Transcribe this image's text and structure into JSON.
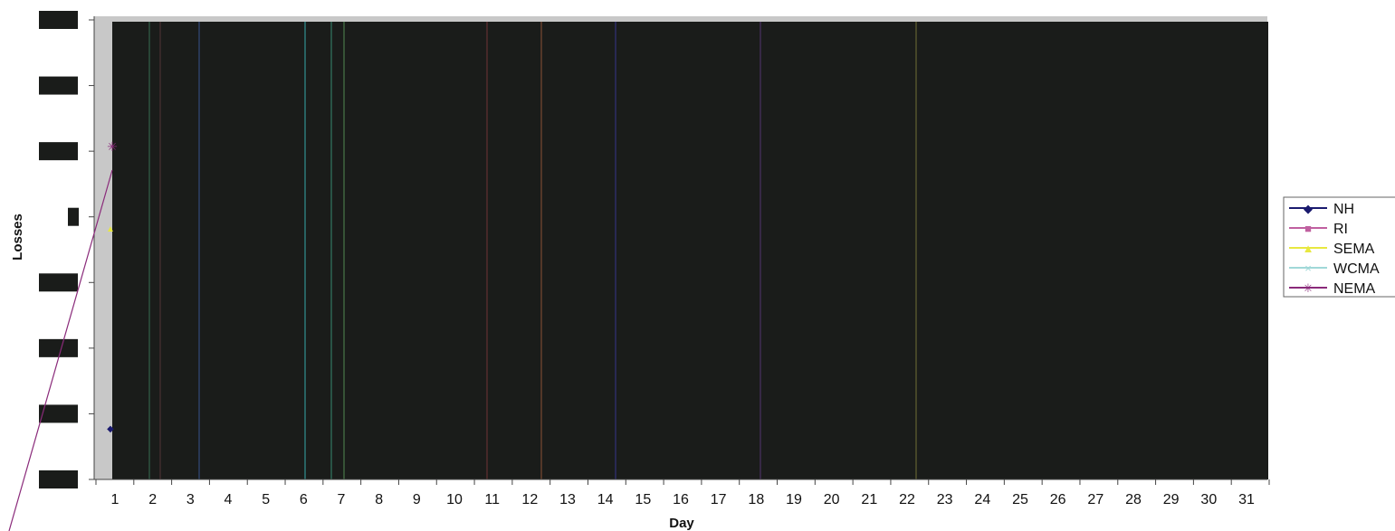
{
  "chart_data": {
    "type": "line",
    "xlabel": "Day",
    "ylabel": "Losses",
    "x": [
      1,
      2,
      3,
      4,
      5,
      6,
      7,
      8,
      9,
      10,
      11,
      12,
      13,
      14,
      15,
      16,
      17,
      18,
      19,
      20,
      21,
      22,
      23,
      24,
      25,
      26,
      27,
      28,
      29,
      30,
      31
    ],
    "categories": [
      "1",
      "2",
      "3",
      "4",
      "5",
      "6",
      "7",
      "8",
      "9",
      "10",
      "11",
      "12",
      "13",
      "14",
      "15",
      "16",
      "17",
      "18",
      "19",
      "20",
      "21",
      "22",
      "23",
      "24",
      "25",
      "26",
      "27",
      "28",
      "29",
      "30",
      "31"
    ],
    "y_ticks_redacted": true,
    "y_tick_count": 8,
    "legend_position": "right",
    "legend": [
      "NH",
      "RI",
      "SEMA",
      "WCMA",
      "NEMA"
    ],
    "series": [
      {
        "name": "NH",
        "color": "#1a1a6e",
        "marker": "diamond"
      },
      {
        "name": "RI",
        "color": "#c060a0",
        "marker": "square"
      },
      {
        "name": "SEMA",
        "color": "#e8e840",
        "marker": "triangle"
      },
      {
        "name": "WCMA",
        "color": "#a0d8d8",
        "marker": "x"
      },
      {
        "name": "NEMA",
        "color": "#8a2a7a",
        "marker": "star"
      }
    ],
    "plot_area_redacted": true,
    "redaction_color": "#1a1c1a",
    "plot_background": "#c8c8c8"
  }
}
